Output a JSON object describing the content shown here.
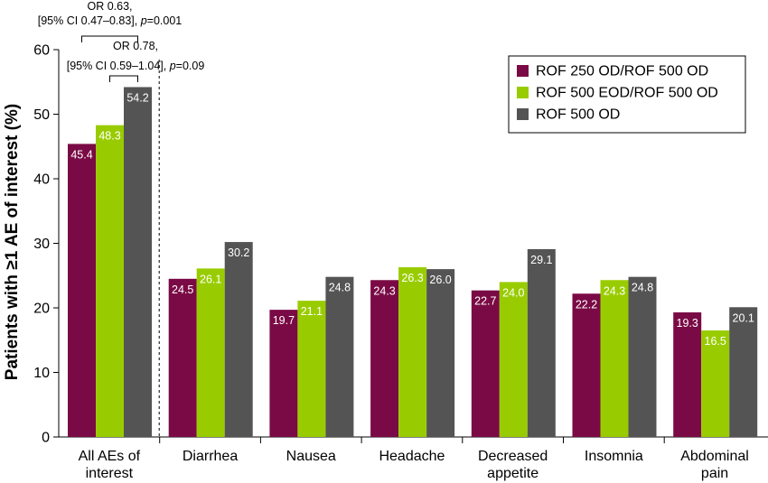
{
  "chart_data": {
    "type": "bar",
    "ylabel": "Patients with ≥1 AE of interest (%)",
    "ylim": [
      0,
      60
    ],
    "yticks": [
      0,
      10,
      20,
      30,
      40,
      50,
      60
    ],
    "categories": [
      [
        "All AEs of",
        "interest"
      ],
      [
        "Diarrhea"
      ],
      [
        "Nausea"
      ],
      [
        "Headache"
      ],
      [
        "Decreased",
        "appetite"
      ],
      [
        "Insomnia"
      ],
      [
        "Abdominal",
        "pain"
      ]
    ],
    "series": [
      {
        "name": "ROF 250 OD/ROF 500 OD",
        "color": "#7a0a45",
        "values": [
          45.4,
          24.5,
          19.7,
          24.3,
          22.7,
          22.2,
          19.3
        ],
        "labels": [
          "45.4",
          "24.5",
          "19.7",
          "24.3",
          "22.7",
          "22.2",
          "19.3"
        ]
      },
      {
        "name": "ROF 500 EOD/ROF 500 OD",
        "color": "#99cc00",
        "values": [
          48.3,
          26.1,
          21.1,
          26.3,
          24.0,
          24.3,
          16.5
        ],
        "labels": [
          "48.3",
          "26.1",
          "21.1",
          "26.3",
          "24.0",
          "24.3",
          "16.5"
        ]
      },
      {
        "name": "ROF 500 OD",
        "color": "#545454",
        "values": [
          54.2,
          30.2,
          24.8,
          26.0,
          29.1,
          24.8,
          20.1
        ],
        "labels": [
          "54.2",
          "30.2",
          "24.8",
          "26.0",
          "29.1",
          "24.8",
          "20.1"
        ]
      }
    ],
    "legend_position": "top-right",
    "divider_after_category": 0,
    "annotations": [
      {
        "line1": "OR 0.63,",
        "line2_prefix": "[95% CI 0.47–0.83], ",
        "p_symbol": "p",
        "p_value": "=0.001",
        "from_series": 0,
        "to_series": 2,
        "category": 0
      },
      {
        "line1": "OR 0.78,",
        "line2_prefix": "[95% CI 0.59–1.04], ",
        "p_symbol": "p",
        "p_value": "=0.09",
        "from_series": 1,
        "to_series": 2,
        "category": 0
      }
    ]
  }
}
